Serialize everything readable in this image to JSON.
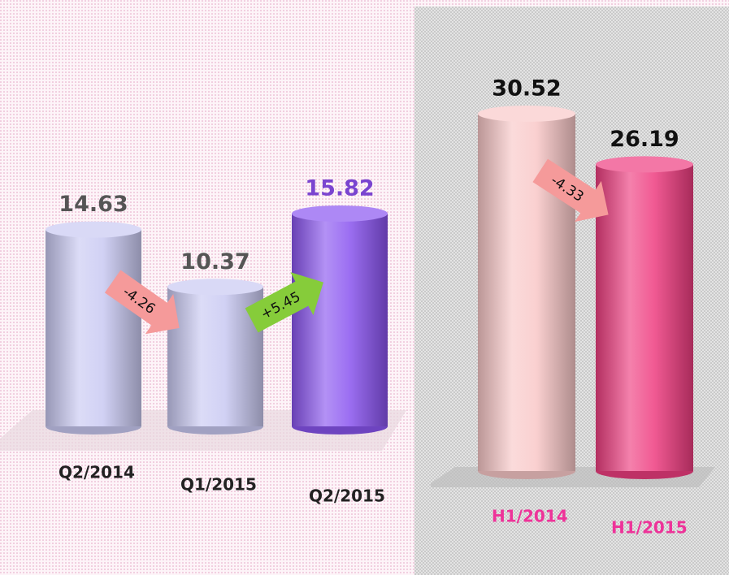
{
  "chart_data": [
    {
      "type": "cylinder",
      "categories": [
        "Q2/2014",
        "Q1/2015",
        "Q2/2015"
      ],
      "values": [
        14.63,
        10.37,
        15.82
      ],
      "colors": [
        "#c9c9f2",
        "#c9c9f2",
        "#8a55f0"
      ],
      "value_colors": [
        "#555555",
        "#555555",
        "#7a45d0"
      ],
      "category_color": "#222222",
      "annotations": [
        {
          "text": "-4.26",
          "color": "#f59a9a"
        },
        {
          "text": "+5.45",
          "color": "#86cc3a"
        }
      ]
    },
    {
      "type": "cylinder",
      "categories": [
        "H1/2014",
        "H1/2015"
      ],
      "values": [
        30.52,
        26.19
      ],
      "colors": [
        "#f9c8c8",
        "#ee3d80"
      ],
      "value_colors": [
        "#111111",
        "#111111"
      ],
      "category_color": "#ee3399",
      "annotations": [
        {
          "text": "-4.33",
          "color": "#f59a9a"
        }
      ]
    }
  ]
}
